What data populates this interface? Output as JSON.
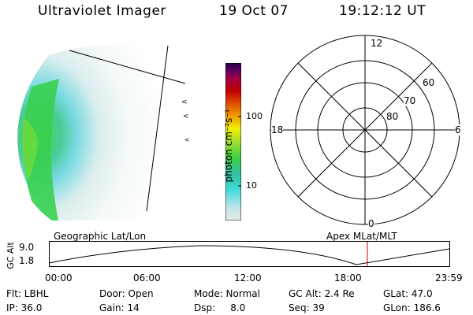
{
  "header": {
    "instrument": "Ultraviolet Imager",
    "date": "19 Oct 07",
    "time": "19:12:12 UT"
  },
  "colorbar": {
    "label": "photon cm⁻²s⁻¹",
    "ticks": [
      "100",
      "10"
    ]
  },
  "polar": {
    "mlt_labels": {
      "top": "12",
      "left": "18",
      "right": "6",
      "bottom": "0"
    },
    "lat_labels": [
      "60",
      "70",
      "80"
    ]
  },
  "timeline": {
    "left_title": "Geographic Lat/Lon",
    "right_title": "Apex MLat/MLT",
    "axis_label": "GC Alt",
    "y_max": "9.0",
    "y_min": "1.8",
    "time_ticks": [
      "00:00",
      "06:00",
      "12:00",
      "18:00",
      "23:59"
    ]
  },
  "info": {
    "row1": [
      "Flt: LBHL",
      "Door: Open",
      "Mode: Normal",
      "GC Alt: 2.4 Re",
      "GLat:  47.0"
    ],
    "row2": [
      "IP: 36.0",
      "Gain: 14",
      "Dsp:     8.0",
      "Seq: 39",
      "GLon: 186.6"
    ]
  },
  "colors": {
    "colorbar_stops": [
      "#e8e8e8",
      "#bfe6ea",
      "#40d8d8",
      "#30c0a0",
      "#40d040",
      "#a0e030",
      "#f0f000",
      "#f0a000",
      "#e05000",
      "#c00000",
      "#a00040",
      "#600060",
      "#200040"
    ],
    "red_marker": "#cc0000"
  }
}
